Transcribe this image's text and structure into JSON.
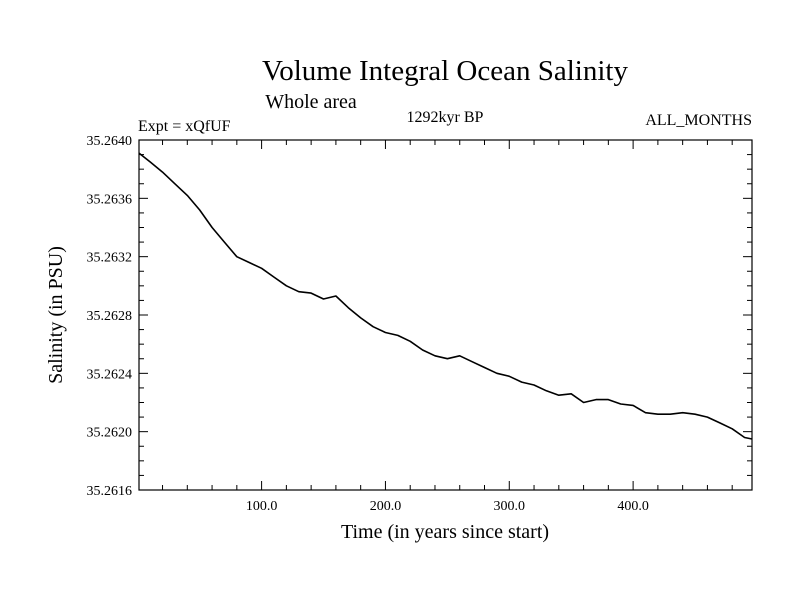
{
  "chart_data": {
    "type": "line",
    "title": "Volume Integral Ocean Salinity",
    "subtitle": "Whole area",
    "header_left": "Expt = xQfUF",
    "header_center": "1292kyr BP",
    "header_right": "ALL_MONTHS",
    "xlabel": "Time (in years since start)",
    "ylabel": "Salinity (in PSU)",
    "xlim": [
      1,
      496
    ],
    "ylim": [
      35.2616,
      35.264
    ],
    "x_ticks": [
      100,
      200,
      300,
      400
    ],
    "x_tick_labels": [
      "100.0",
      "200.0",
      "300.0",
      "400.0"
    ],
    "y_ticks": [
      35.2616,
      35.262,
      35.2624,
      35.2628,
      35.2632,
      35.2636,
      35.264
    ],
    "y_tick_labels": [
      "35.2616",
      "35.2620",
      "35.2624",
      "35.2628",
      "35.2632",
      "35.2636",
      "35.2640"
    ],
    "grid": false,
    "series": [
      {
        "name": "Salinity",
        "color": "#000000",
        "x": [
          1,
          10,
          20,
          30,
          40,
          50,
          60,
          70,
          80,
          90,
          100,
          110,
          120,
          130,
          140,
          150,
          160,
          170,
          180,
          190,
          200,
          210,
          220,
          230,
          240,
          250,
          260,
          270,
          280,
          290,
          300,
          310,
          320,
          330,
          340,
          350,
          360,
          370,
          380,
          390,
          400,
          410,
          420,
          430,
          440,
          450,
          460,
          470,
          480,
          490,
          496
        ],
        "values": [
          35.26391,
          35.26385,
          35.26378,
          35.2637,
          35.26362,
          35.26352,
          35.2634,
          35.2633,
          35.2632,
          35.26316,
          35.26312,
          35.26306,
          35.263,
          35.26296,
          35.26295,
          35.26291,
          35.26293,
          35.26285,
          35.26278,
          35.26272,
          35.26268,
          35.26266,
          35.26262,
          35.26256,
          35.26252,
          35.2625,
          35.26252,
          35.26248,
          35.26244,
          35.2624,
          35.26238,
          35.26234,
          35.26232,
          35.26228,
          35.26225,
          35.26226,
          35.2622,
          35.26222,
          35.26222,
          35.26219,
          35.26218,
          35.26213,
          35.26212,
          35.26212,
          35.26213,
          35.26212,
          35.2621,
          35.26206,
          35.26202,
          35.26196,
          35.26195
        ]
      }
    ]
  }
}
